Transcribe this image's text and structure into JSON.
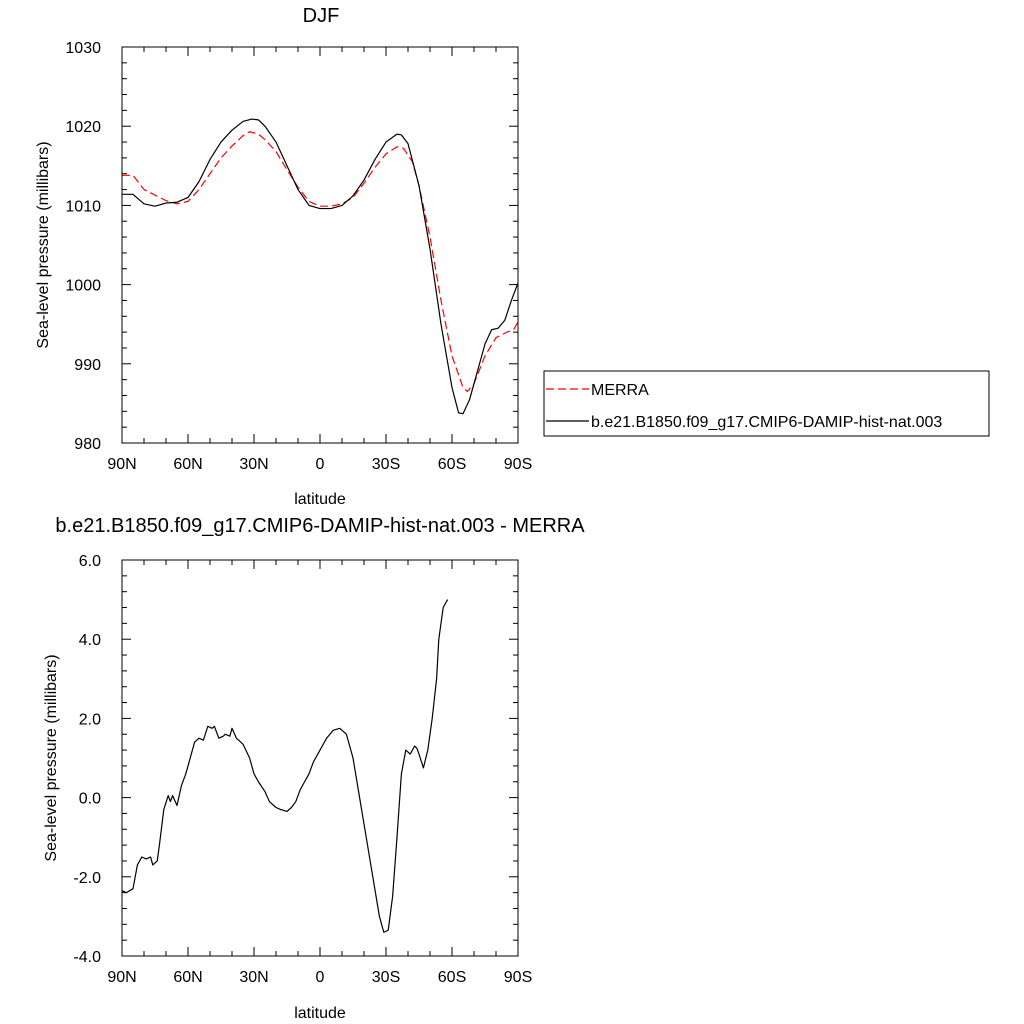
{
  "chart_data": [
    {
      "type": "line",
      "title": "DJF",
      "xlabel": "latitude",
      "ylabel": "Sea-level pressure (millibars)",
      "xlim": [
        90,
        -90
      ],
      "ylim": [
        980,
        1030
      ],
      "xticks": [
        90,
        60,
        30,
        0,
        -30,
        -60,
        -90
      ],
      "xtick_labels": [
        "90N",
        "60N",
        "30N",
        "0",
        "30S",
        "60S",
        "90S"
      ],
      "yticks": [
        980,
        990,
        1000,
        1010,
        1020,
        1030
      ],
      "ytick_labels": [
        "980",
        "990",
        "1000",
        "1010",
        "1020",
        "1030"
      ],
      "legend": "right",
      "series": [
        {
          "name": "MERRA",
          "color": "#ff0000",
          "style": "dashed",
          "points": [
            [
              90,
              1013.8
            ],
            [
              85,
              1013.8
            ],
            [
              80,
              1012.0
            ],
            [
              75,
              1011.3
            ],
            [
              70,
              1010.6
            ],
            [
              65,
              1010.2
            ],
            [
              60,
              1010.5
            ],
            [
              55,
              1012.0
            ],
            [
              50,
              1014.0
            ],
            [
              45,
              1016.0
            ],
            [
              40,
              1017.5
            ],
            [
              35,
              1018.8
            ],
            [
              32,
              1019.3
            ],
            [
              28,
              1019.0
            ],
            [
              25,
              1018.3
            ],
            [
              20,
              1016.8
            ],
            [
              15,
              1014.5
            ],
            [
              10,
              1012.3
            ],
            [
              5,
              1010.5
            ],
            [
              0,
              1009.9
            ],
            [
              -5,
              1009.9
            ],
            [
              -10,
              1010.2
            ],
            [
              -15,
              1011.0
            ],
            [
              -20,
              1012.8
            ],
            [
              -25,
              1014.8
            ],
            [
              -30,
              1016.5
            ],
            [
              -35,
              1017.4
            ],
            [
              -38,
              1017.2
            ],
            [
              -42,
              1015.5
            ],
            [
              -45,
              1012.5
            ],
            [
              -50,
              1006.0
            ],
            [
              -55,
              998.0
            ],
            [
              -60,
              991.0
            ],
            [
              -65,
              987.0
            ],
            [
              -67,
              986.5
            ],
            [
              -70,
              987.5
            ],
            [
              -75,
              991.0
            ],
            [
              -80,
              993.3
            ],
            [
              -85,
              994.0
            ],
            [
              -88,
              994.3
            ],
            [
              -90,
              995.3
            ]
          ]
        },
        {
          "name": "b.e21.B1850.f09_g17.CMIP6-DAMIP-hist-nat.003",
          "color": "#000000",
          "style": "solid",
          "points": [
            [
              90,
              1011.4
            ],
            [
              85,
              1011.4
            ],
            [
              80,
              1010.2
            ],
            [
              75,
              1009.9
            ],
            [
              70,
              1010.3
            ],
            [
              65,
              1010.4
            ],
            [
              60,
              1011.0
            ],
            [
              55,
              1013.0
            ],
            [
              50,
              1015.8
            ],
            [
              45,
              1018.0
            ],
            [
              40,
              1019.5
            ],
            [
              35,
              1020.6
            ],
            [
              31,
              1020.9
            ],
            [
              28,
              1020.8
            ],
            [
              25,
              1020.0
            ],
            [
              20,
              1018.0
            ],
            [
              15,
              1015.0
            ],
            [
              10,
              1012.0
            ],
            [
              5,
              1010.0
            ],
            [
              0,
              1009.6
            ],
            [
              -5,
              1009.6
            ],
            [
              -10,
              1010.0
            ],
            [
              -15,
              1011.2
            ],
            [
              -20,
              1013.2
            ],
            [
              -25,
              1015.8
            ],
            [
              -30,
              1018.0
            ],
            [
              -35,
              1019.0
            ],
            [
              -37,
              1018.9
            ],
            [
              -40,
              1017.8
            ],
            [
              -45,
              1012.5
            ],
            [
              -50,
              1004.5
            ],
            [
              -55,
              995.0
            ],
            [
              -60,
              987.0
            ],
            [
              -63,
              983.8
            ],
            [
              -65,
              983.7
            ],
            [
              -68,
              985.5
            ],
            [
              -72,
              989.5
            ],
            [
              -75,
              992.5
            ],
            [
              -78,
              994.3
            ],
            [
              -81,
              994.5
            ],
            [
              -84,
              995.5
            ],
            [
              -87,
              998.0
            ],
            [
              -90,
              1000.2
            ]
          ]
        }
      ]
    },
    {
      "type": "line",
      "title": "b.e21.B1850.f09_g17.CMIP6-DAMIP-hist-nat.003 - MERRA",
      "xlabel": "latitude",
      "ylabel": "Sea-level pressure (millibars)",
      "xlim": [
        90,
        -90
      ],
      "ylim": [
        -4.0,
        6.0
      ],
      "xticks": [
        90,
        60,
        30,
        0,
        -30,
        -60,
        -90
      ],
      "xtick_labels": [
        "90N",
        "60N",
        "30N",
        "0",
        "30S",
        "60S",
        "90S"
      ],
      "yticks": [
        -4,
        -2,
        0,
        2,
        4,
        6
      ],
      "ytick_labels": [
        "-4.0",
        "-2.0",
        "0.0",
        "2.0",
        "4.0",
        "6.0"
      ],
      "series": [
        {
          "color": "#000000",
          "style": "solid",
          "points": [
            [
              90,
              -2.35
            ],
            [
              88,
              -2.4
            ],
            [
              85,
              -2.3
            ],
            [
              83,
              -1.7
            ],
            [
              81,
              -1.5
            ],
            [
              79,
              -1.55
            ],
            [
              77,
              -1.5
            ],
            [
              76,
              -1.7
            ],
            [
              74,
              -1.6
            ],
            [
              73,
              -1.2
            ],
            [
              71,
              -0.3
            ],
            [
              69,
              0.05
            ],
            [
              68,
              -0.1
            ],
            [
              67,
              0.05
            ],
            [
              65,
              -0.2
            ],
            [
              63,
              0.3
            ],
            [
              61,
              0.6
            ],
            [
              59,
              1.0
            ],
            [
              57,
              1.4
            ],
            [
              55,
              1.5
            ],
            [
              53,
              1.45
            ],
            [
              51,
              1.8
            ],
            [
              49,
              1.75
            ],
            [
              48,
              1.8
            ],
            [
              46,
              1.5
            ],
            [
              44,
              1.55
            ],
            [
              43,
              1.6
            ],
            [
              41,
              1.55
            ],
            [
              40,
              1.75
            ],
            [
              38,
              1.5
            ],
            [
              35,
              1.35
            ],
            [
              32,
              1.0
            ],
            [
              30,
              0.6
            ],
            [
              28,
              0.4
            ],
            [
              25,
              0.15
            ],
            [
              23,
              -0.1
            ],
            [
              20,
              -0.25
            ],
            [
              18,
              -0.3
            ],
            [
              15,
              -0.35
            ],
            [
              13,
              -0.25
            ],
            [
              11,
              -0.1
            ],
            [
              9,
              0.2
            ],
            [
              7,
              0.4
            ],
            [
              5,
              0.6
            ],
            [
              3,
              0.9
            ],
            [
              1,
              1.1
            ],
            [
              -1,
              1.3
            ],
            [
              -3,
              1.5
            ],
            [
              -6,
              1.7
            ],
            [
              -9,
              1.75
            ],
            [
              -12,
              1.6
            ],
            [
              -15,
              1.0
            ],
            [
              -18,
              0.0
            ],
            [
              -21,
              -1.0
            ],
            [
              -24,
              -2.0
            ],
            [
              -27,
              -3.0
            ],
            [
              -29,
              -3.4
            ],
            [
              -31,
              -3.35
            ],
            [
              -33,
              -2.5
            ],
            [
              -35,
              -1.0
            ],
            [
              -37,
              0.6
            ],
            [
              -39,
              1.2
            ],
            [
              -41,
              1.1
            ],
            [
              -43,
              1.3
            ],
            [
              -44,
              1.25
            ],
            [
              -45,
              1.1
            ],
            [
              -47,
              0.75
            ],
            [
              -49,
              1.2
            ],
            [
              -51,
              2.0
            ],
            [
              -53,
              3.0
            ],
            [
              -54,
              4.0
            ],
            [
              -56,
              4.8
            ],
            [
              -58,
              5.0
            ]
          ]
        }
      ]
    }
  ]
}
